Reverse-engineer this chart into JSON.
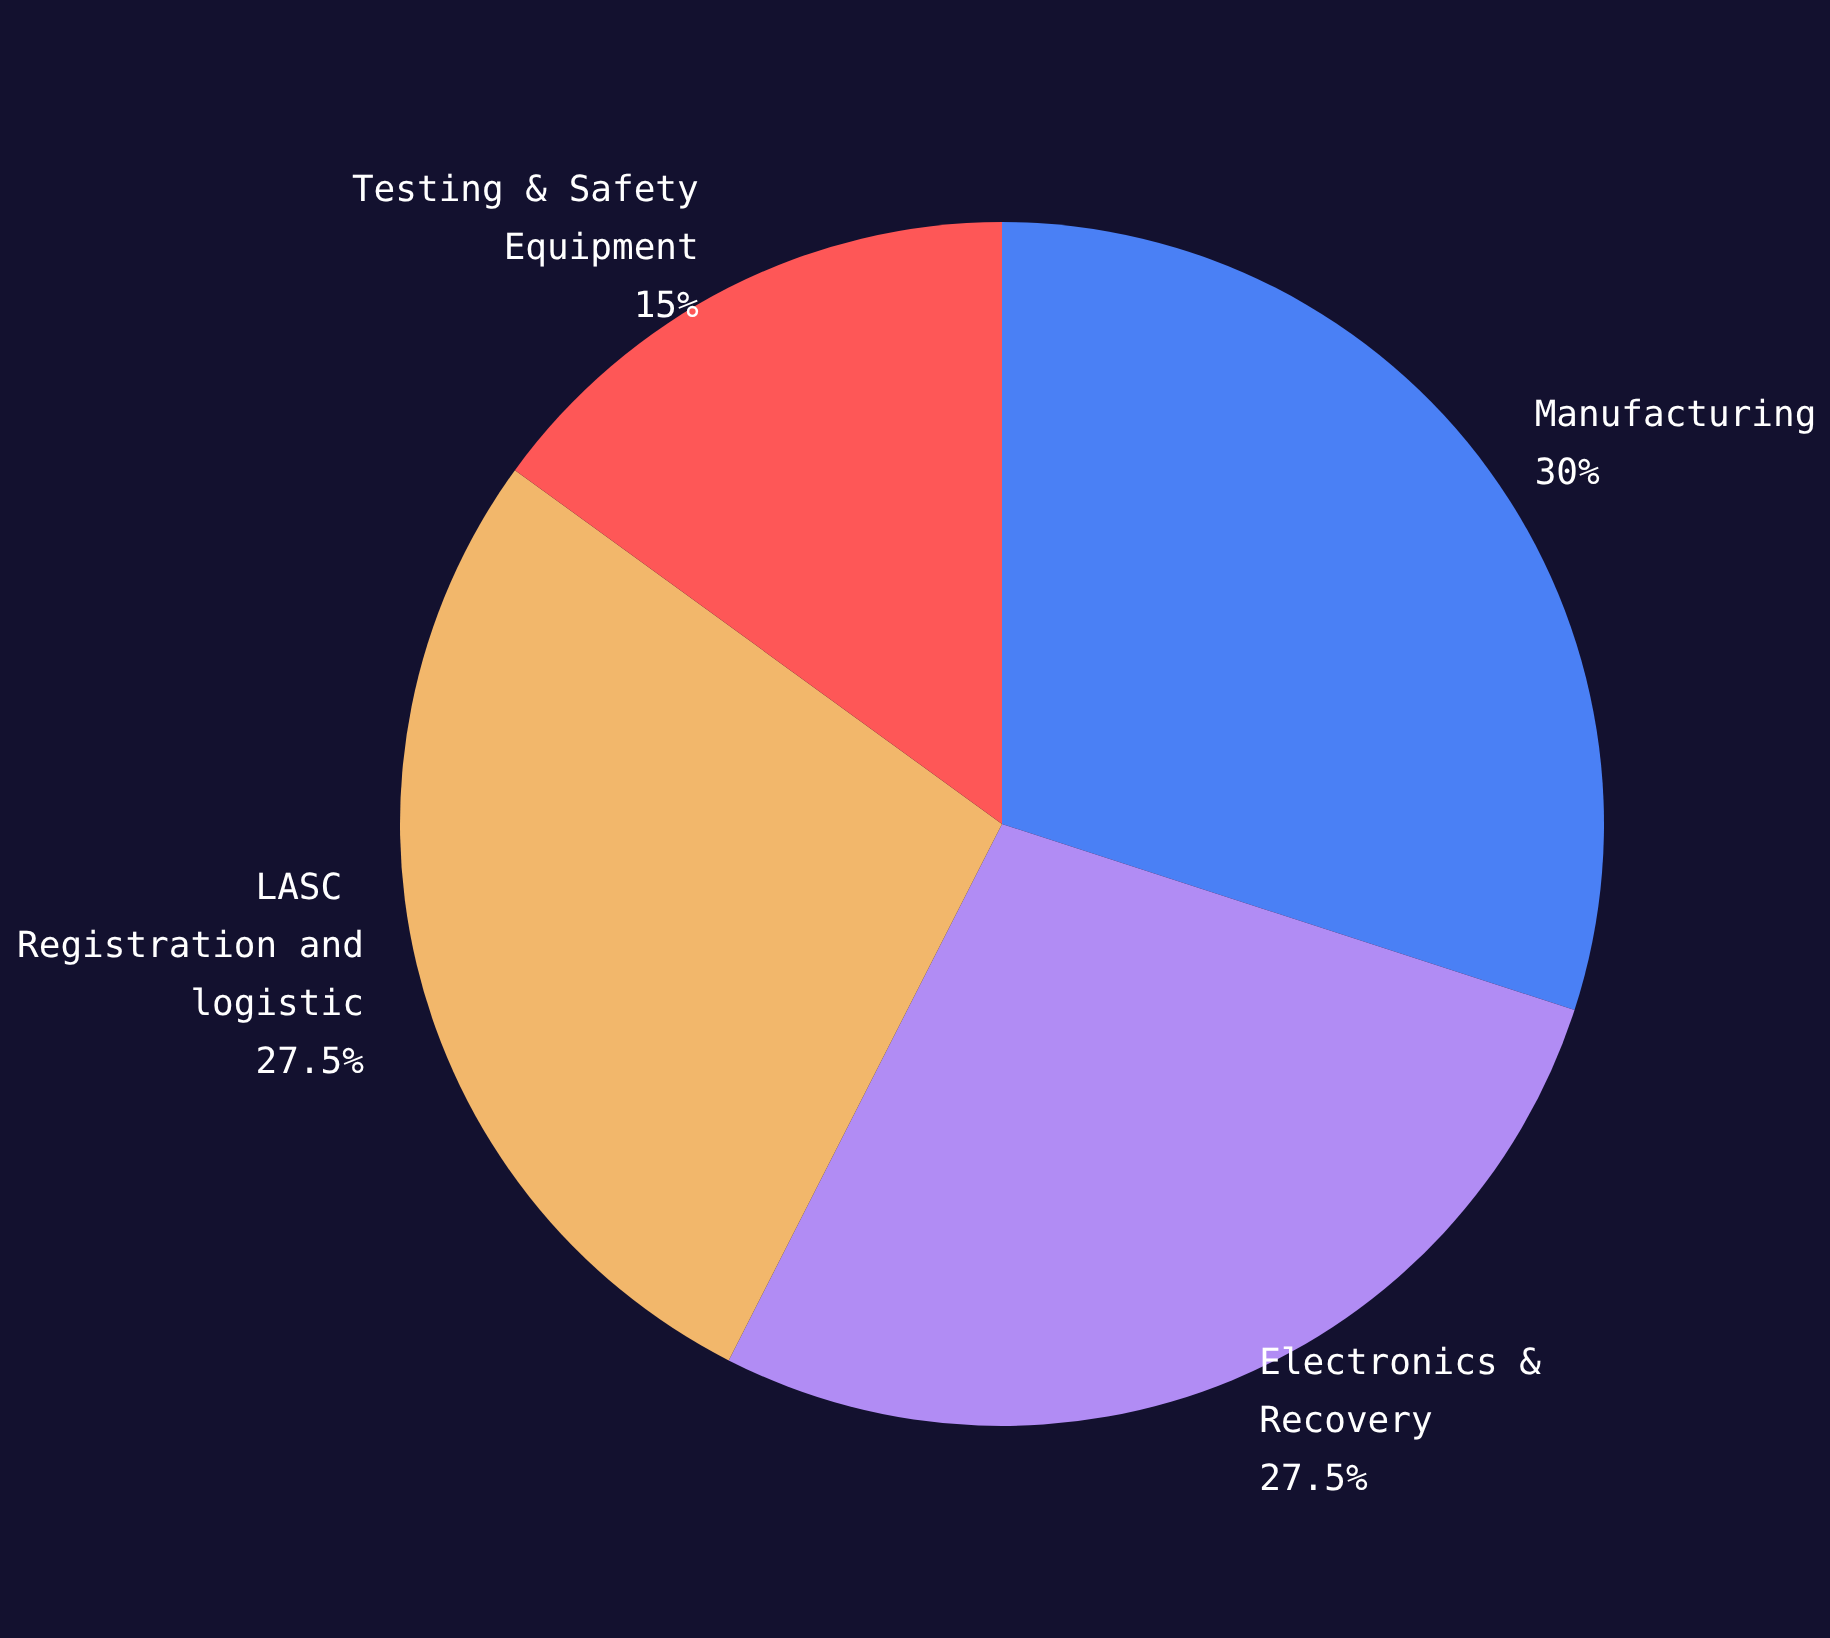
{
  "chart_data": {
    "type": "pie",
    "categories": [
      "Manufacturing",
      "Electronics & Recovery",
      "LASC Registration and logistic",
      "Testing & Safety Equipment"
    ],
    "values": [
      30,
      27.5,
      27.5,
      15
    ],
    "colors": [
      "#4a80f5",
      "#b18cf4",
      "#f2b76b",
      "#fe5757"
    ],
    "value_labels": [
      "30%",
      "27.5%",
      "27.5%",
      "15%"
    ],
    "legend": false
  }
}
